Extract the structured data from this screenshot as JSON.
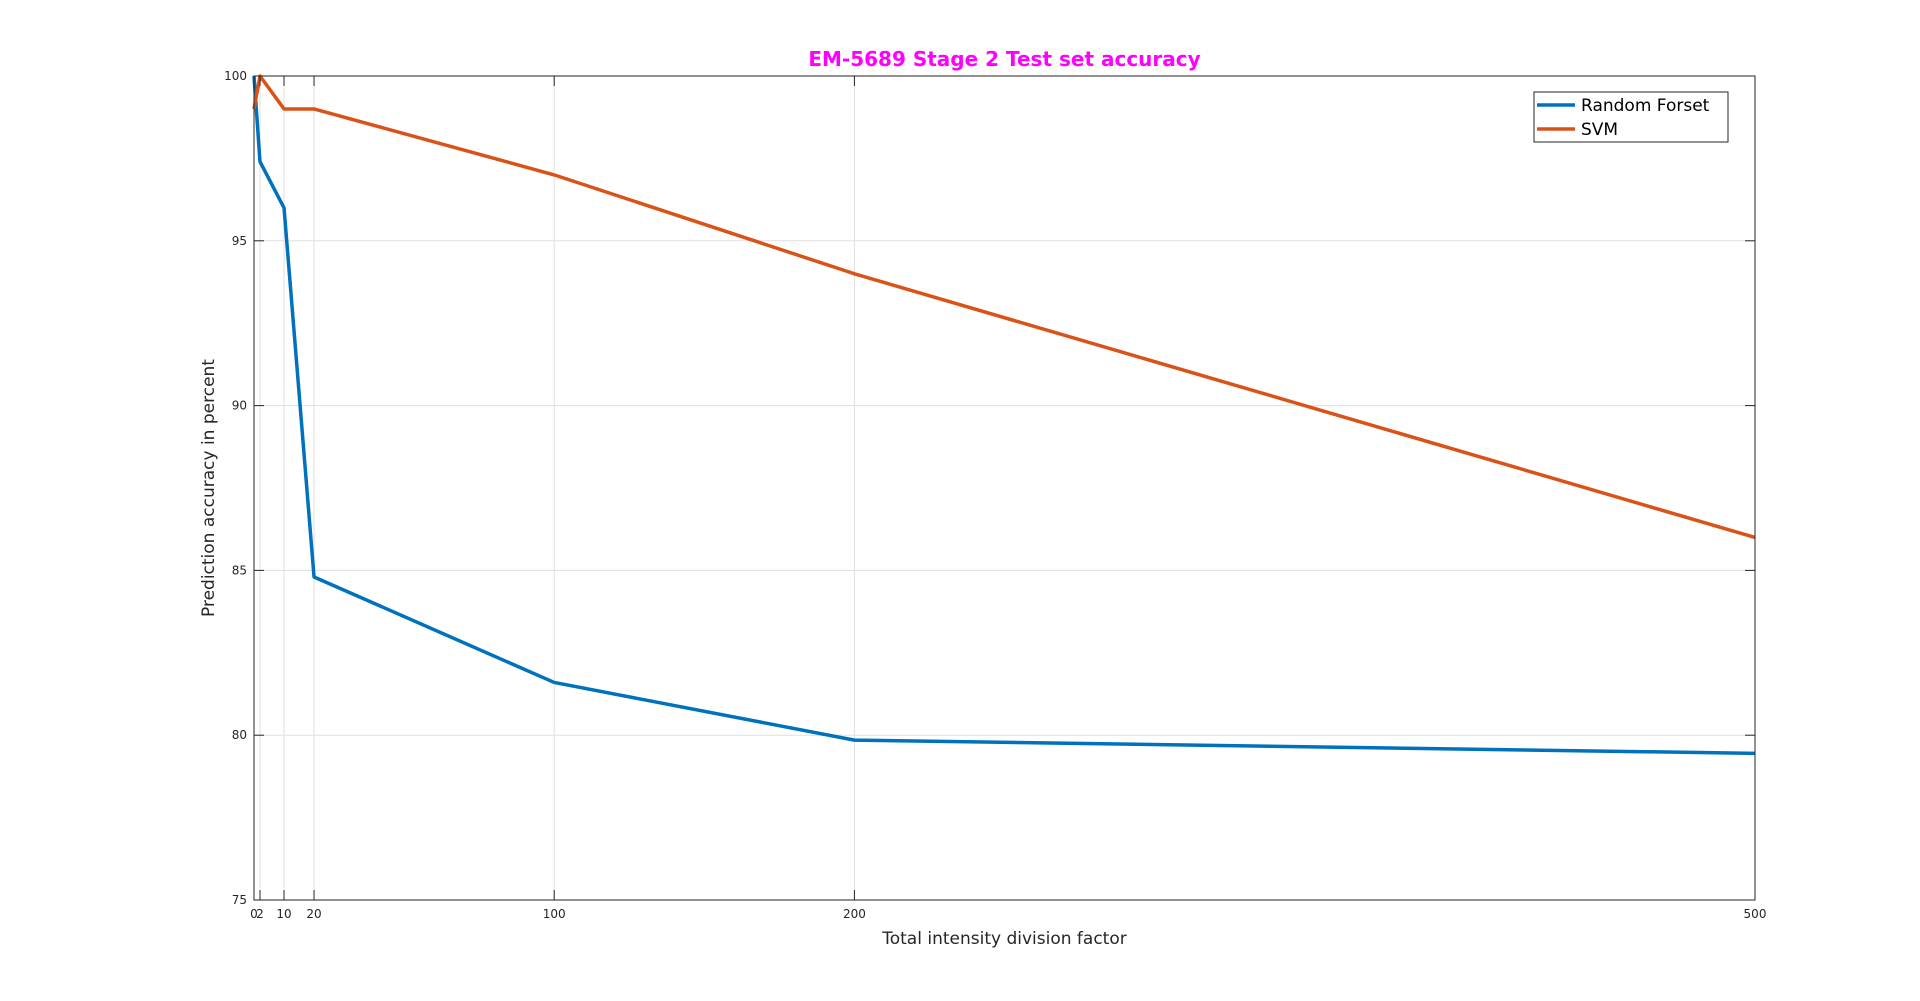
{
  "chart_data": {
    "type": "line",
    "title": "EM-5689 Stage 2 Test set accuracy",
    "title_color": "#ff00ff",
    "xlabel": "Total intensity division factor",
    "ylabel": "Prediction accuracy in percent",
    "xlim": [
      0,
      500
    ],
    "ylim": [
      75,
      100
    ],
    "xticks": [
      0,
      2,
      10,
      20,
      100,
      200,
      500
    ],
    "xtick_labels": [
      "0",
      "2",
      "10",
      "20",
      "100",
      "200",
      "500"
    ],
    "yticks": [
      75,
      80,
      85,
      90,
      95,
      100
    ],
    "ytick_labels": [
      "75",
      "80",
      "85",
      "90",
      "95",
      "100"
    ],
    "grid": true,
    "legend_position": "top-right",
    "series": [
      {
        "name": "Random Forset",
        "color": "#0072bd",
        "x": [
          0,
          2,
          10,
          20,
          100,
          200,
          500
        ],
        "y": [
          100,
          97.4,
          96.0,
          84.8,
          81.6,
          79.85,
          79.45
        ]
      },
      {
        "name": "SVM",
        "color": "#d95319",
        "x": [
          0,
          2,
          10,
          20,
          100,
          200,
          500
        ],
        "y": [
          99.0,
          100,
          99.0,
          99.0,
          97.0,
          94.0,
          86.0
        ]
      }
    ]
  }
}
